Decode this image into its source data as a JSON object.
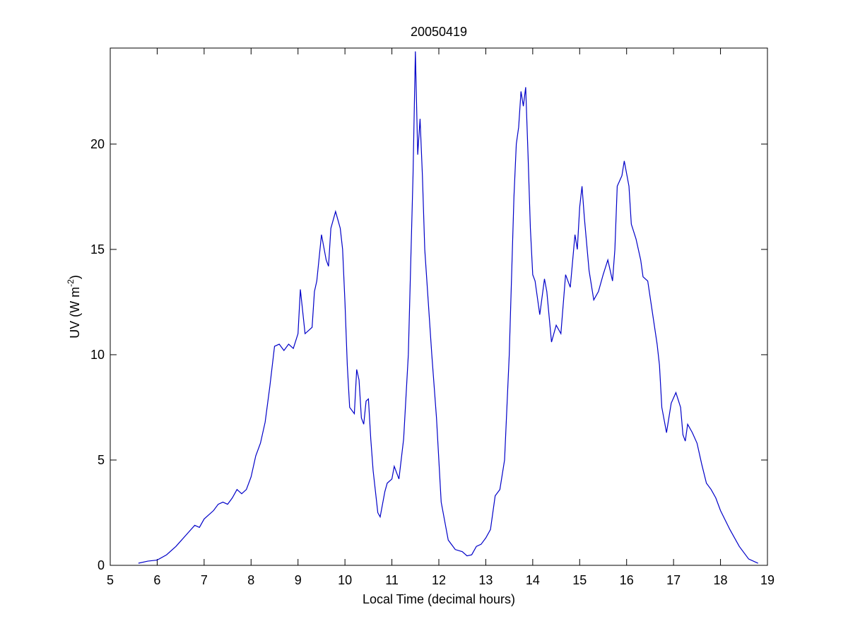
{
  "chart_data": {
    "type": "line",
    "title": "20050419",
    "xlabel": "Local Time (decimal hours)",
    "ylabel": [
      "UV (W m",
      "-2",
      ")"
    ],
    "xlim": [
      5,
      19
    ],
    "xticks": [
      5,
      6,
      7,
      8,
      9,
      10,
      11,
      12,
      13,
      14,
      15,
      16,
      17,
      18,
      19
    ],
    "ylim": [
      0,
      24.56
    ],
    "yticks": [
      0,
      5,
      10,
      15,
      20
    ],
    "grid": false,
    "x": [
      5.6,
      5.8,
      6.0,
      6.2,
      6.4,
      6.6,
      6.8,
      6.9,
      7.0,
      7.2,
      7.3,
      7.4,
      7.5,
      7.6,
      7.7,
      7.8,
      7.9,
      8.0,
      8.1,
      8.2,
      8.3,
      8.4,
      8.5,
      8.6,
      8.7,
      8.8,
      8.9,
      9.0,
      9.05,
      9.15,
      9.3,
      9.35,
      9.4,
      9.5,
      9.6,
      9.65,
      9.7,
      9.8,
      9.9,
      9.95,
      10.0,
      10.05,
      10.1,
      10.2,
      10.25,
      10.3,
      10.35,
      10.4,
      10.45,
      10.5,
      10.55,
      10.6,
      10.7,
      10.75,
      10.85,
      10.9,
      11.0,
      11.05,
      11.15,
      11.25,
      11.35,
      11.45,
      11.5,
      11.55,
      11.6,
      11.65,
      11.7,
      11.85,
      11.95,
      12.05,
      12.2,
      12.35,
      12.5,
      12.6,
      12.7,
      12.8,
      12.9,
      13.0,
      13.1,
      13.2,
      13.3,
      13.4,
      13.5,
      13.6,
      13.65,
      13.7,
      13.75,
      13.8,
      13.85,
      13.9,
      13.95,
      14.0,
      14.05,
      14.15,
      14.25,
      14.3,
      14.4,
      14.5,
      14.6,
      14.7,
      14.8,
      14.9,
      14.95,
      15.0,
      15.05,
      15.1,
      15.2,
      15.3,
      15.4,
      15.5,
      15.6,
      15.7,
      15.75,
      15.8,
      15.9,
      15.95,
      16.05,
      16.1,
      16.2,
      16.3,
      16.35,
      16.45,
      16.55,
      16.65,
      16.7,
      16.75,
      16.85,
      16.95,
      17.05,
      17.15,
      17.2,
      17.25,
      17.3,
      17.4,
      17.5,
      17.6,
      17.7,
      17.8,
      17.9,
      18.0,
      18.2,
      18.4,
      18.6,
      18.8
    ],
    "series": [
      {
        "color": "#0000c8",
        "values": [
          0.1,
          0.2,
          0.25,
          0.5,
          0.9,
          1.4,
          1.9,
          1.8,
          2.2,
          2.6,
          2.9,
          3.0,
          2.9,
          3.2,
          3.6,
          3.4,
          3.6,
          4.2,
          5.2,
          5.8,
          6.8,
          8.5,
          10.4,
          10.5,
          10.2,
          10.5,
          10.3,
          11.0,
          13.1,
          11.0,
          11.3,
          13.0,
          13.5,
          15.7,
          14.5,
          14.2,
          16.0,
          16.8,
          16.0,
          15.0,
          12.5,
          9.5,
          7.5,
          7.2,
          9.3,
          8.8,
          7.0,
          6.7,
          7.8,
          7.9,
          6.0,
          4.5,
          2.5,
          2.3,
          3.5,
          3.9,
          4.1,
          4.7,
          4.1,
          6.0,
          10.0,
          18.5,
          24.4,
          19.5,
          21.2,
          18.5,
          15.0,
          10.0,
          7.0,
          3.0,
          1.2,
          0.75,
          0.65,
          0.45,
          0.5,
          0.9,
          1.0,
          1.3,
          1.7,
          3.3,
          3.6,
          5.0,
          10.0,
          17.5,
          20.0,
          20.8,
          22.5,
          21.8,
          22.7,
          19.5,
          16.0,
          13.8,
          13.5,
          11.9,
          13.6,
          13.0,
          10.6,
          11.4,
          11.0,
          13.8,
          13.2,
          15.7,
          15.0,
          17.0,
          18.0,
          16.5,
          14.0,
          12.6,
          13.0,
          13.8,
          14.5,
          13.5,
          15.0,
          18.0,
          18.5,
          19.2,
          18.0,
          16.2,
          15.5,
          14.5,
          13.7,
          13.5,
          12.0,
          10.5,
          9.5,
          7.5,
          6.3,
          7.7,
          8.2,
          7.5,
          6.2,
          5.9,
          6.7,
          6.3,
          5.8,
          4.8,
          3.9,
          3.6,
          3.2,
          2.6,
          1.7,
          0.9,
          0.3,
          0.1
        ]
      }
    ]
  }
}
